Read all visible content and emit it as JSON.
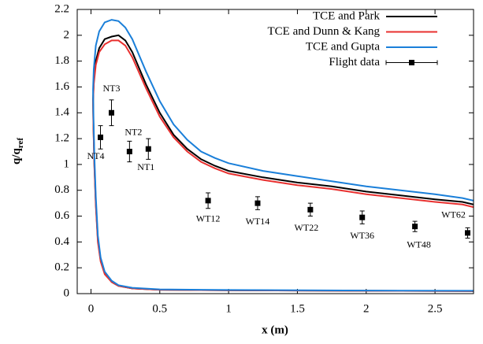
{
  "chart_data": {
    "type": "line",
    "xlabel": "x (m)",
    "ylabel": {
      "main": "q/q",
      "sub": "ref"
    },
    "xlim": [
      -0.1,
      2.78
    ],
    "xticks": [
      0,
      0.5,
      1,
      1.5,
      2,
      2.5
    ],
    "ylim": [
      0,
      2.2
    ],
    "yticks": [
      0,
      0.2,
      0.4,
      0.6,
      0.8,
      1,
      1.2,
      1.4,
      1.6,
      1.8,
      2,
      2.2
    ],
    "grid": false,
    "legend": "top-right",
    "series": [
      {
        "name": "TCE and Park",
        "color": "#000000",
        "x": [
          2.78,
          2.0,
          1.0,
          0.5,
          0.3,
          0.2,
          0.15,
          0.1,
          0.07,
          0.05,
          0.035,
          0.025,
          0.018,
          0.015,
          0.02,
          0.035,
          0.06,
          0.1,
          0.15,
          0.2,
          0.25,
          0.3,
          0.4,
          0.5,
          0.6,
          0.7,
          0.8,
          0.9,
          1.0,
          1.25,
          1.5,
          1.75,
          2.0,
          2.25,
          2.5,
          2.7,
          2.78
        ],
        "values": [
          0.02,
          0.022,
          0.026,
          0.03,
          0.04,
          0.06,
          0.09,
          0.16,
          0.26,
          0.42,
          0.7,
          1.0,
          1.3,
          1.5,
          1.65,
          1.8,
          1.9,
          1.97,
          1.99,
          2.0,
          1.96,
          1.87,
          1.62,
          1.4,
          1.23,
          1.12,
          1.04,
          0.99,
          0.95,
          0.9,
          0.86,
          0.83,
          0.79,
          0.76,
          0.73,
          0.71,
          0.69
        ]
      },
      {
        "name": "TCE and Dunn & Kang",
        "color": "#e8302f",
        "x": [
          2.78,
          2.0,
          1.0,
          0.5,
          0.3,
          0.2,
          0.15,
          0.1,
          0.07,
          0.05,
          0.035,
          0.025,
          0.018,
          0.015,
          0.02,
          0.035,
          0.06,
          0.1,
          0.15,
          0.2,
          0.25,
          0.3,
          0.4,
          0.5,
          0.6,
          0.7,
          0.8,
          0.9,
          1.0,
          1.25,
          1.5,
          1.75,
          2.0,
          2.25,
          2.5,
          2.7,
          2.78
        ],
        "values": [
          0.02,
          0.022,
          0.026,
          0.03,
          0.04,
          0.06,
          0.09,
          0.15,
          0.25,
          0.4,
          0.68,
          0.98,
          1.28,
          1.48,
          1.62,
          1.77,
          1.87,
          1.93,
          1.96,
          1.96,
          1.92,
          1.83,
          1.59,
          1.37,
          1.21,
          1.1,
          1.02,
          0.97,
          0.93,
          0.88,
          0.84,
          0.81,
          0.77,
          0.74,
          0.71,
          0.69,
          0.67
        ]
      },
      {
        "name": "TCE and Gupta",
        "color": "#1a7fd9",
        "x": [
          2.78,
          2.0,
          1.0,
          0.5,
          0.3,
          0.2,
          0.15,
          0.1,
          0.07,
          0.05,
          0.035,
          0.025,
          0.018,
          0.015,
          0.02,
          0.035,
          0.06,
          0.1,
          0.15,
          0.2,
          0.25,
          0.3,
          0.4,
          0.5,
          0.6,
          0.7,
          0.8,
          0.9,
          1.0,
          1.25,
          1.5,
          1.75,
          2.0,
          2.25,
          2.5,
          2.7,
          2.78
        ],
        "values": [
          0.022,
          0.024,
          0.028,
          0.033,
          0.045,
          0.065,
          0.1,
          0.17,
          0.28,
          0.45,
          0.75,
          1.06,
          1.38,
          1.58,
          1.74,
          1.92,
          2.03,
          2.1,
          2.12,
          2.11,
          2.06,
          1.97,
          1.72,
          1.49,
          1.31,
          1.19,
          1.1,
          1.05,
          1.01,
          0.95,
          0.91,
          0.87,
          0.83,
          0.8,
          0.77,
          0.74,
          0.72
        ]
      },
      {
        "name": "Flight data",
        "color": "#000000",
        "type": "errorbar",
        "x": [
          0.069,
          0.149,
          0.28,
          0.417,
          0.851,
          1.211,
          1.594,
          1.971,
          2.354,
          2.737
        ],
        "values": [
          1.21,
          1.4,
          1.1,
          1.12,
          0.72,
          0.7,
          0.65,
          0.59,
          0.52,
          0.47
        ],
        "errors": [
          0.09,
          0.1,
          0.08,
          0.08,
          0.06,
          0.05,
          0.05,
          0.05,
          0.04,
          0.04
        ],
        "point_labels": [
          "NT4",
          "NT3",
          "NT2",
          "NT1",
          "WT12",
          "WT14",
          "WT22",
          "WT36",
          "WT48",
          "WT62"
        ]
      }
    ]
  }
}
